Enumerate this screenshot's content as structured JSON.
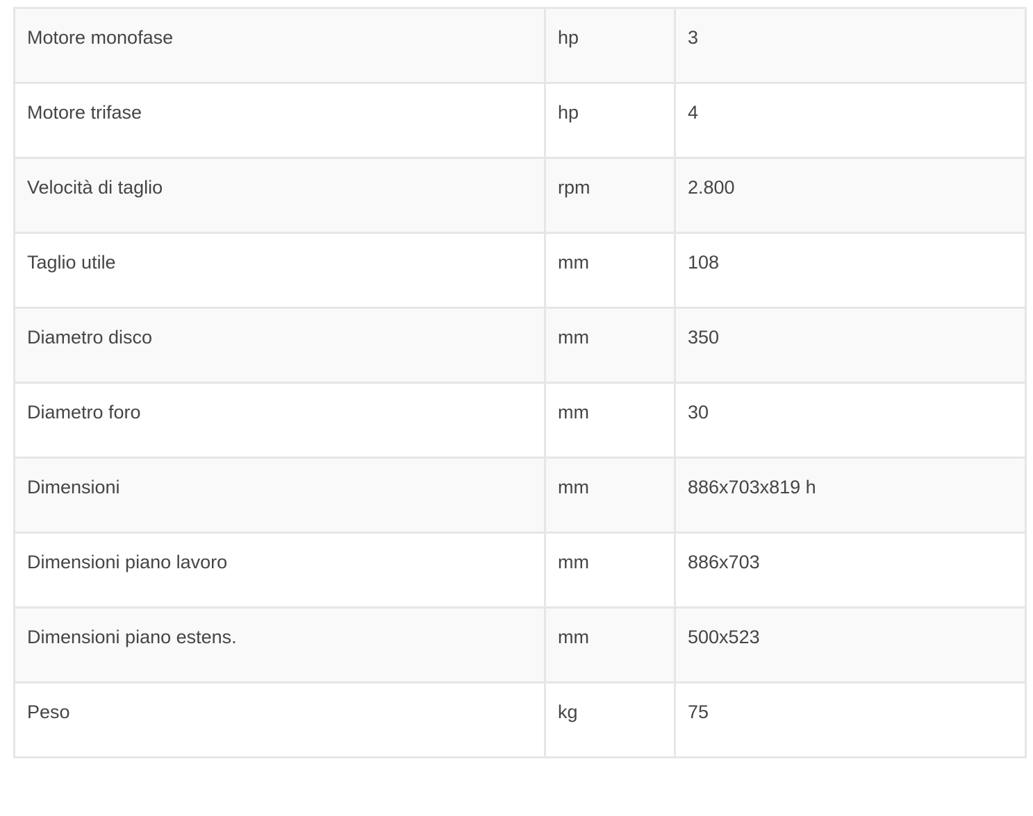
{
  "specs": [
    {
      "label": "Motore monofase",
      "unit": "hp",
      "value": "3"
    },
    {
      "label": "Motore trifase",
      "unit": "hp",
      "value": "4"
    },
    {
      "label": "Velocità di taglio",
      "unit": "rpm",
      "value": "2.800"
    },
    {
      "label": "Taglio utile",
      "unit": "mm",
      "value": "108"
    },
    {
      "label": "Diametro disco",
      "unit": "mm",
      "value": "350"
    },
    {
      "label": "Diametro foro",
      "unit": "mm",
      "value": "30"
    },
    {
      "label": "Dimensioni",
      "unit": "mm",
      "value": "886x703x819 h"
    },
    {
      "label": "Dimensioni piano lavoro",
      "unit": "mm",
      "value": "886x703"
    },
    {
      "label": "Dimensioni piano estens.",
      "unit": "mm",
      "value": "500x523"
    },
    {
      "label": "Peso",
      "unit": "kg",
      "value": "75"
    }
  ]
}
